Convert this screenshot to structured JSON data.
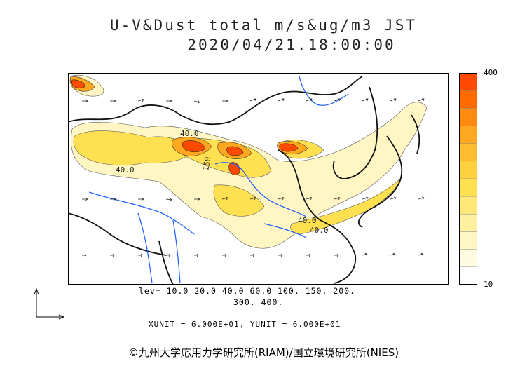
{
  "title_line1": "U-V&Dust total m/s&ug/m3 JST",
  "title_line2": "2020/04/21.18:00:00",
  "legend": {
    "max_label": "400",
    "min_label": "10",
    "colors": [
      "#ff4a00",
      "#ff6a00",
      "#ff8a10",
      "#ffa820",
      "#ffbc30",
      "#ffd040",
      "#ffe050",
      "#ffe878",
      "#fff0a0",
      "#fff6c4",
      "#fffbe0",
      "#ffffff"
    ]
  },
  "levels_line1": "lev= 10.0 20.0 40.0 60.0 100. 150. 200.",
  "levels_line2": "300. 400.",
  "units_text": "XUNIT = 6.000E+01, YUNIT = 6.000E+01",
  "copyright": "©九州大学応用力学研究所(RIAM)/国立環境研究所(NIES)",
  "contour_labels": [
    "40.0",
    "40.0",
    "150",
    "40.0",
    "40.0"
  ],
  "colors": {
    "coast": "#111111",
    "river": "#1a5cff",
    "dust_low": "#fff6c4",
    "dust_mid": "#ffe050",
    "dust_high": "#ffa820",
    "dust_max": "#ff4a00"
  }
}
